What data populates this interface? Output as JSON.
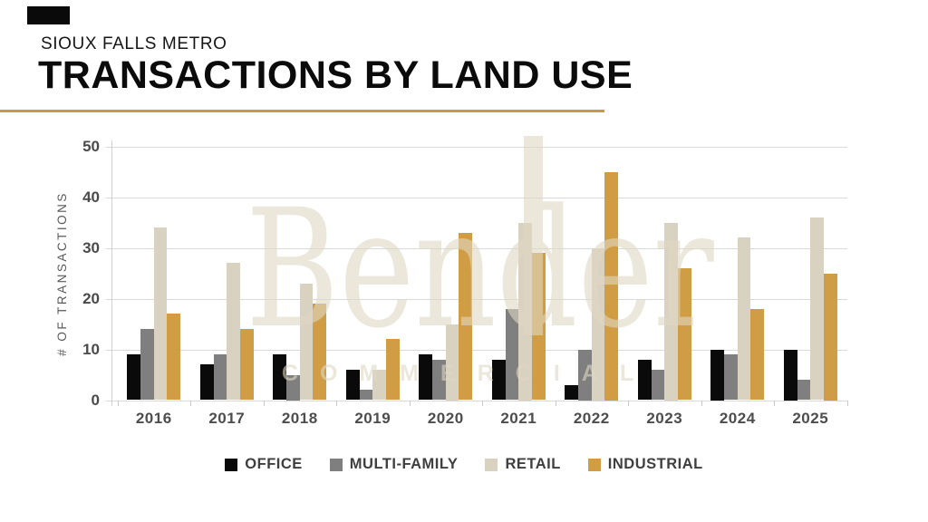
{
  "header": {
    "kicker": "SIOUX FALLS METRO",
    "title": "TRANSACTIONS BY LAND USE",
    "accent_color": "#c69a48"
  },
  "watermark": {
    "name": "Bender",
    "subtitle": "COMMERCIAL"
  },
  "chart_data": {
    "type": "bar",
    "title": "",
    "categories": [
      "2016",
      "2017",
      "2018",
      "2019",
      "2020",
      "2021",
      "2022",
      "2023",
      "2024",
      "2025"
    ],
    "series": [
      {
        "name": "OFFICE",
        "color": "#0a0a0a",
        "values": [
          9,
          7,
          9,
          6,
          9,
          8,
          3,
          8,
          10,
          10
        ]
      },
      {
        "name": "MULTI-FAMILY",
        "color": "#7f7f7f",
        "values": [
          14,
          9,
          5,
          2,
          8,
          18,
          10,
          6,
          9,
          4
        ]
      },
      {
        "name": "RETAIL",
        "color": "#d9d2c0",
        "values": [
          34,
          27,
          23,
          6,
          15,
          35,
          30,
          35,
          32,
          36
        ]
      },
      {
        "name": "INDUSTRIAL",
        "color": "#d09c44",
        "values": [
          17,
          14,
          19,
          12,
          33,
          29,
          45,
          26,
          18,
          25
        ]
      }
    ],
    "xlabel": "",
    "ylabel": "# OF TRANSACTIONS",
    "ylim": [
      0,
      50
    ],
    "yticks": [
      0,
      10,
      20,
      30,
      40,
      50
    ],
    "grid": true,
    "legend_position": "bottom"
  }
}
